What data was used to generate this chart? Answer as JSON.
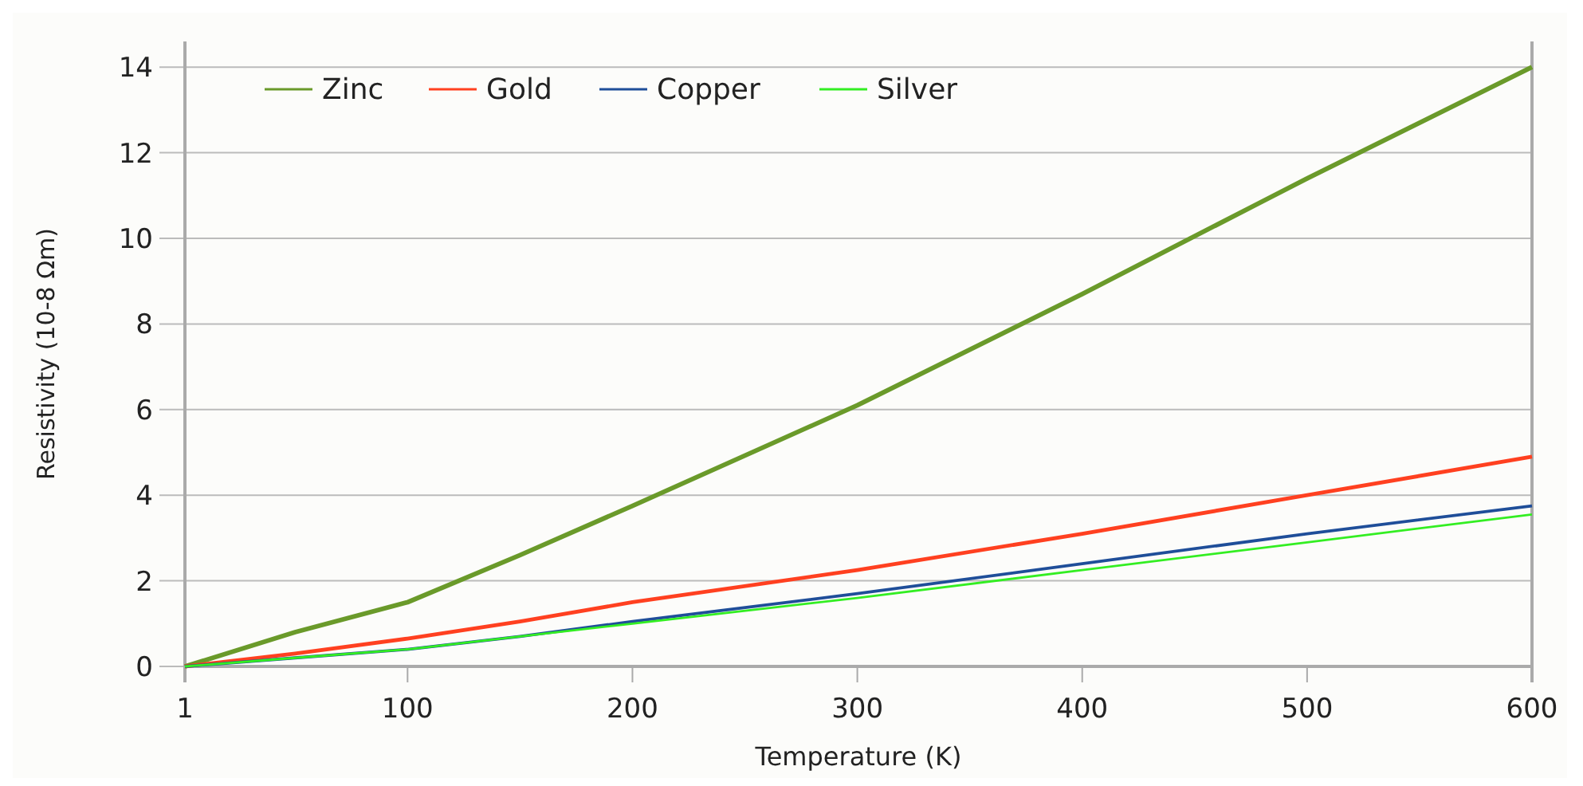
{
  "chart_data": {
    "type": "line",
    "xlabel": "Temperature (K)",
    "ylabel": "Resistivity (10-8 Ωm)",
    "x": [
      1,
      50,
      100,
      150,
      200,
      300,
      400,
      500,
      600
    ],
    "xlim": [
      1,
      600
    ],
    "xticks": [
      1,
      100,
      200,
      300,
      400,
      500,
      600
    ],
    "ylim": [
      0,
      14.6
    ],
    "yticks": [
      0,
      2,
      4,
      6,
      8,
      10,
      12,
      14
    ],
    "grid": "y",
    "legend": "top left",
    "marker": "none",
    "line_style": "solid",
    "series": [
      {
        "name": "Zinc",
        "color": "#6a9a2a",
        "values": [
          0,
          0.8,
          1.5,
          2.6,
          3.75,
          6.1,
          8.7,
          11.4,
          14.0
        ]
      },
      {
        "name": "Gold",
        "color": "#ff4020",
        "values": [
          0,
          0.3,
          0.65,
          1.05,
          1.5,
          2.25,
          3.1,
          4.0,
          4.9
        ]
      },
      {
        "name": "Copper",
        "color": "#1f4e99",
        "values": [
          0,
          0.2,
          0.4,
          0.7,
          1.05,
          1.7,
          2.4,
          3.1,
          3.75
        ]
      },
      {
        "name": "Silver",
        "color": "#33ee22",
        "values": [
          0,
          0.2,
          0.4,
          0.7,
          1.0,
          1.6,
          2.25,
          2.9,
          3.55
        ]
      }
    ]
  }
}
